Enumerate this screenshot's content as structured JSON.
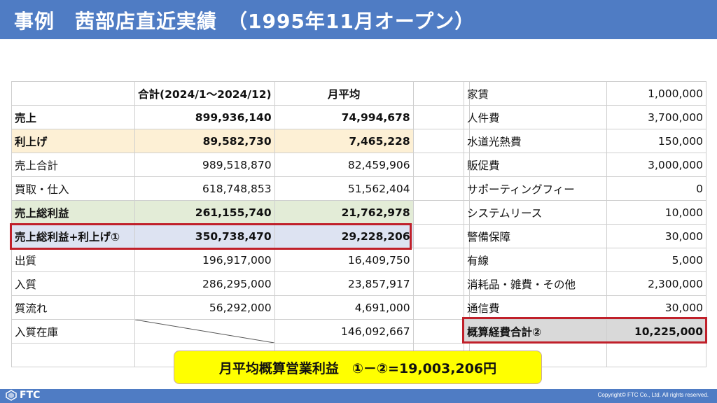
{
  "header": {
    "title": "事例　茜部店直近実績　（1995年11月オープン）"
  },
  "left_table": {
    "col_total": "合計(2024/1～2024/12)",
    "col_avg": "月平均",
    "rows": [
      {
        "label": "売上",
        "total": "899,936,140",
        "avg": "74,994,678"
      },
      {
        "label": "利上げ",
        "total": "89,582,730",
        "avg": "7,465,228"
      },
      {
        "label": "売上合計",
        "total": "989,518,870",
        "avg": "82,459,906"
      },
      {
        "label": "買取・仕入",
        "total": "618,748,853",
        "avg": "51,562,404"
      },
      {
        "label": "売上総利益",
        "total": "261,155,740",
        "avg": "21,762,978"
      },
      {
        "label": "売上総利益+利上げ①",
        "total": "350,738,470",
        "avg": "29,228,206"
      },
      {
        "label": "出質",
        "total": "196,917,000",
        "avg": "16,409,750"
      },
      {
        "label": "入質",
        "total": "286,295,000",
        "avg": "23,857,917"
      },
      {
        "label": "質流れ",
        "total": "56,292,000",
        "avg": "4,691,000"
      },
      {
        "label": "入質在庫",
        "total": "",
        "avg": "146,092,667"
      }
    ]
  },
  "right_table": {
    "rows": [
      {
        "label": "家賃",
        "value": "1,000,000"
      },
      {
        "label": "人件費",
        "value": "3,700,000"
      },
      {
        "label": "水道光熱費",
        "value": "150,000"
      },
      {
        "label": "販促費",
        "value": "3,000,000"
      },
      {
        "label": "サポーティングフィー",
        "value": "0"
      },
      {
        "label": "システムリース",
        "value": "10,000"
      },
      {
        "label": "警備保障",
        "value": "30,000"
      },
      {
        "label": "有線",
        "value": "5,000"
      },
      {
        "label": "消耗品・雑費・その他",
        "value": "2,300,000"
      },
      {
        "label": "通信費",
        "value": "30,000"
      },
      {
        "label": "概算経費合計②",
        "value": "10,225,000"
      }
    ]
  },
  "callout": {
    "text": "月平均概算営業利益　①－②=19,003,206円"
  },
  "footer": {
    "logo_text": "FTC",
    "copyright": "Copyright© FTC Co., Ltd. All rights reserved."
  },
  "colors": {
    "header": "#4f7cc4",
    "highlight_orange": "#fdf0d5",
    "highlight_green": "#e3ecd7",
    "highlight_blue": "#dde3f2",
    "total_gray": "#d9d9d9",
    "outline_red": "#c0202a",
    "callout_yellow": "#ffff00"
  },
  "icons": {
    "logo": "ftc-logo-icon"
  }
}
